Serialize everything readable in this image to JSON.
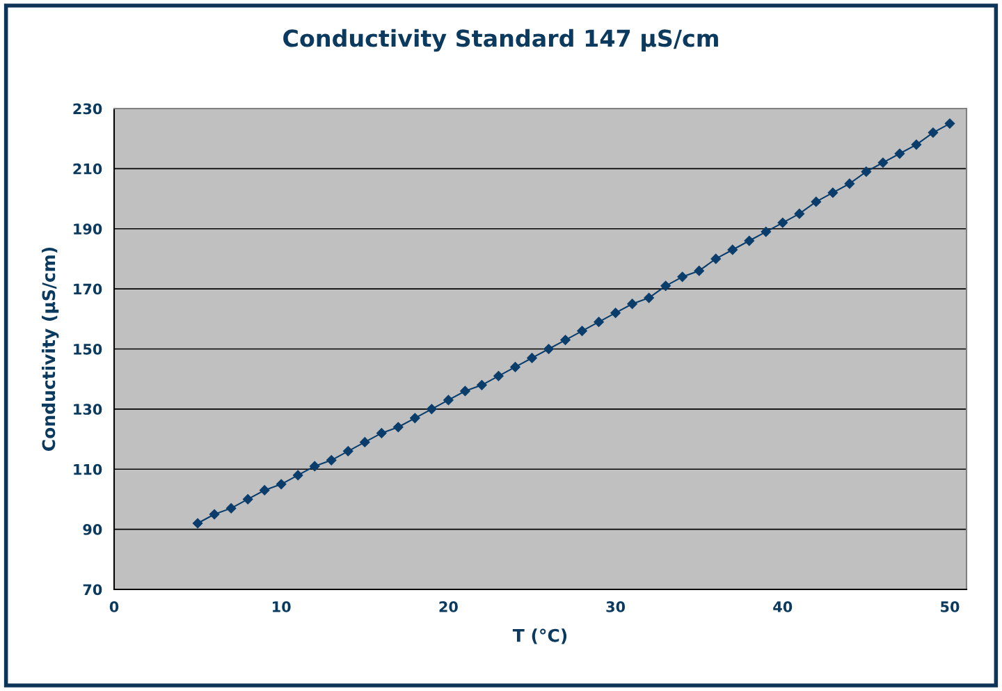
{
  "chart_data": {
    "type": "line",
    "title": "Conductivity Standard 147 µS/cm",
    "xlabel": "T (°C)",
    "ylabel": "Conductivity (µS/cm)",
    "x": [
      5,
      6,
      7,
      8,
      9,
      10,
      11,
      12,
      13,
      14,
      15,
      16,
      17,
      18,
      19,
      20,
      21,
      22,
      23,
      24,
      25,
      26,
      27,
      28,
      29,
      30,
      31,
      32,
      33,
      34,
      35,
      36,
      37,
      38,
      39,
      40,
      41,
      42,
      43,
      44,
      45,
      46,
      47,
      48,
      49,
      50
    ],
    "series": [
      {
        "color": "#0a3d6b",
        "values": [
          92,
          95,
          97,
          100,
          103,
          105,
          108,
          111,
          113,
          116,
          119,
          122,
          124,
          127,
          130,
          133,
          136,
          138,
          141,
          144,
          147,
          150,
          153,
          156,
          159,
          162,
          165,
          167,
          171,
          174,
          176,
          180,
          183,
          186,
          189,
          192,
          195,
          199,
          202,
          205,
          209,
          212,
          215,
          218,
          222,
          225
        ]
      }
    ],
    "xlim": [
      0,
      51
    ],
    "xticks": [
      0,
      10,
      20,
      30,
      40,
      50
    ],
    "ylim": [
      70,
      230
    ],
    "yticks": [
      70,
      90,
      110,
      130,
      150,
      170,
      190,
      210,
      230
    ],
    "grid": "y",
    "marker": "diamond",
    "line_style": "solid"
  }
}
